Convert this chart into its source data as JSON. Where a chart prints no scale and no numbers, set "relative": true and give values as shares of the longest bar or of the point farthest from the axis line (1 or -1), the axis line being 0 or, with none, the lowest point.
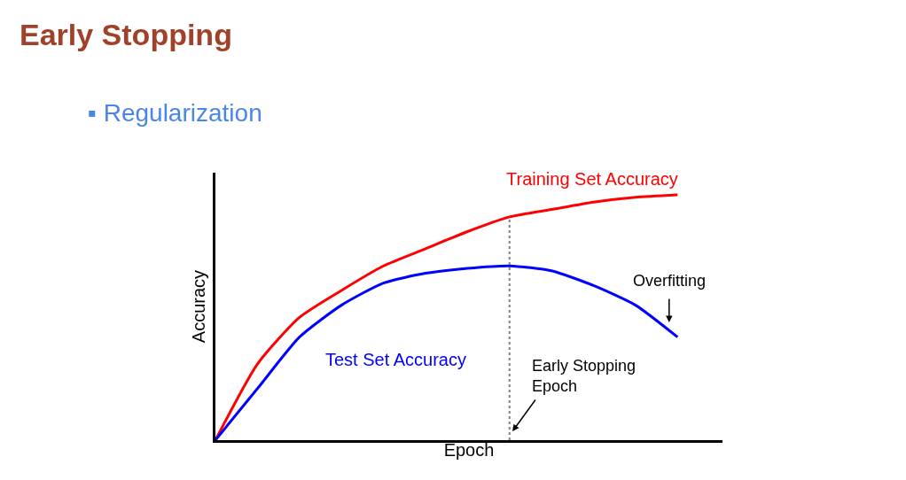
{
  "chart_data": {
    "type": "line",
    "title": "Early Stopping",
    "subtitle": "▪ Regularization",
    "xlabel": "Epoch",
    "ylabel": "Accuracy",
    "relative": true,
    "legend": false,
    "marker": "none",
    "line_style": "solid",
    "categories": [
      null,
      null,
      null,
      null,
      null,
      null,
      null,
      null,
      null,
      null,
      null,
      null
    ],
    "series": [
      {
        "name": "Training Set Accuracy",
        "color": "#ff0000",
        "values": [
          0,
          0.31,
          0.5,
          0.61,
          0.71,
          0.78,
          0.85,
          0.91,
          0.94,
          0.97,
          0.99,
          1.0
        ]
      },
      {
        "name": "Test Set Accuracy",
        "color": "#0000ff",
        "values": [
          0,
          0.21,
          0.42,
          0.55,
          0.64,
          0.68,
          0.7,
          0.71,
          0.69,
          0.63,
          0.55,
          0.42
        ]
      }
    ],
    "annotations": [
      "Overfitting",
      "Early Stopping\nEpoch"
    ]
  }
}
